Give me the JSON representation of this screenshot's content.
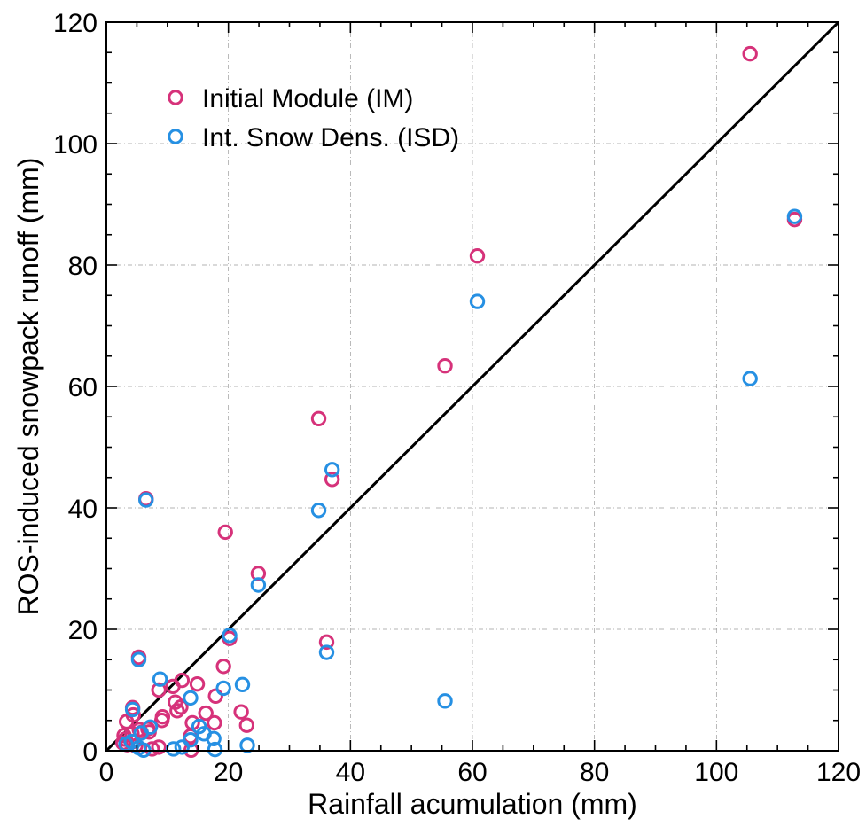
{
  "chart_data": {
    "type": "scatter",
    "title": "",
    "xlabel": "Rainfall acumulation (mm)",
    "ylabel": "ROS-induced snowpack runoff (mm)",
    "xlim": [
      0,
      120
    ],
    "ylim": [
      0,
      120
    ],
    "xticks": [
      "0",
      "20",
      "40",
      "60",
      "80",
      "100",
      "120"
    ],
    "yticks": [
      "0",
      "20",
      "40",
      "60",
      "80",
      "100",
      "120"
    ],
    "grid": true,
    "legend_position": "top-left",
    "reference_line": {
      "from": [
        0,
        0
      ],
      "to": [
        120,
        120
      ],
      "color": "#000000"
    },
    "series": [
      {
        "name": "Initial Module (IM)",
        "color": "#d6327a",
        "marker": "open-circle",
        "points": [
          [
            105.5,
            114.8
          ],
          [
            112.8,
            87.5
          ],
          [
            60.8,
            81.5
          ],
          [
            55.5,
            63.4
          ],
          [
            34.8,
            54.7
          ],
          [
            37.0,
            44.7
          ],
          [
            6.5,
            41.5
          ],
          [
            19.5,
            36.0
          ],
          [
            24.9,
            29.2
          ],
          [
            20.2,
            18.5
          ],
          [
            36.1,
            17.9
          ],
          [
            5.3,
            15.4
          ],
          [
            19.2,
            13.9
          ],
          [
            12.4,
            11.6
          ],
          [
            14.9,
            11.0
          ],
          [
            10.9,
            10.6
          ],
          [
            8.6,
            10.0
          ],
          [
            17.9,
            9.0
          ],
          [
            11.3,
            8.0
          ],
          [
            12.2,
            7.2
          ],
          [
            4.3,
            7.1
          ],
          [
            11.6,
            6.6
          ],
          [
            22.1,
            6.4
          ],
          [
            16.3,
            6.2
          ],
          [
            4.4,
            5.9
          ],
          [
            9.2,
            5.6
          ],
          [
            9.1,
            5.0
          ],
          [
            3.3,
            4.8
          ],
          [
            14.1,
            4.6
          ],
          [
            17.7,
            4.6
          ],
          [
            23.0,
            4.2
          ],
          [
            6.8,
            3.6
          ],
          [
            5.4,
            3.5
          ],
          [
            7.0,
            3.1
          ],
          [
            5.7,
            3.0
          ],
          [
            4.2,
            2.8
          ],
          [
            2.9,
            2.5
          ],
          [
            13.8,
            2.4
          ],
          [
            3.1,
            1.9
          ],
          [
            4.3,
            1.5
          ],
          [
            2.7,
            1.3
          ],
          [
            3.4,
            1.0
          ],
          [
            4.8,
            0.8
          ],
          [
            8.6,
            0.6
          ],
          [
            7.5,
            0.3
          ],
          [
            13.9,
            0.1
          ]
        ]
      },
      {
        "name": "Int. Snow Dens. (ISD)",
        "color": "#2690e3",
        "marker": "open-circle",
        "points": [
          [
            112.8,
            88.0
          ],
          [
            60.8,
            74.0
          ],
          [
            105.5,
            61.3
          ],
          [
            37.0,
            46.3
          ],
          [
            34.8,
            39.6
          ],
          [
            6.5,
            41.3
          ],
          [
            24.9,
            27.3
          ],
          [
            20.2,
            19.0
          ],
          [
            36.1,
            16.2
          ],
          [
            5.3,
            15.0
          ],
          [
            8.8,
            11.8
          ],
          [
            22.3,
            10.9
          ],
          [
            19.2,
            10.3
          ],
          [
            13.8,
            8.7
          ],
          [
            55.5,
            8.2
          ],
          [
            4.3,
            6.8
          ],
          [
            15.2,
            4.0
          ],
          [
            7.2,
            3.9
          ],
          [
            16.0,
            2.8
          ],
          [
            5.7,
            2.9
          ],
          [
            13.8,
            1.8
          ],
          [
            17.6,
            2.0
          ],
          [
            4.1,
            1.5
          ],
          [
            23.1,
            0.9
          ],
          [
            3.2,
            1.1
          ],
          [
            5.3,
            0.5
          ],
          [
            11.0,
            0.3
          ],
          [
            12.4,
            0.6
          ],
          [
            17.8,
            0.2
          ],
          [
            6.1,
            0.1
          ]
        ]
      }
    ]
  }
}
